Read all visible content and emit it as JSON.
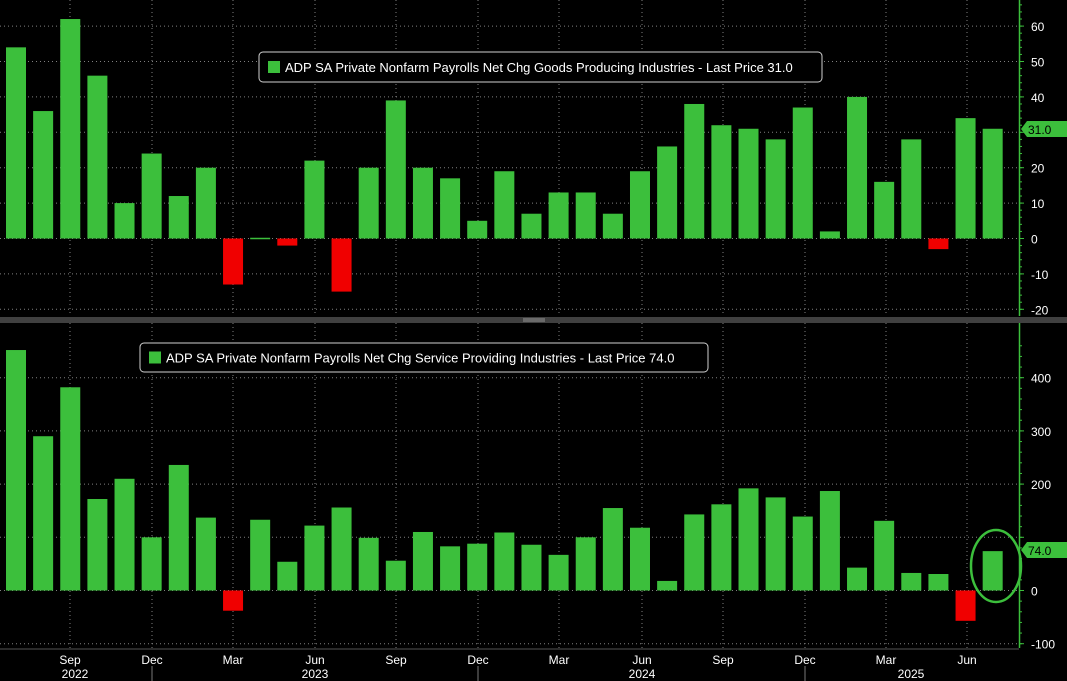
{
  "chart_data": [
    {
      "type": "bar",
      "title": "ADP SA Private Nonfarm Payrolls Net Chg Goods Producing Industries - Last Price 31.0",
      "legend_label": "ADP SA Private Nonfarm Payrolls Net Chg Goods Producing Industries - Last Price 31.0",
      "series_name": "Goods Producing Industries",
      "values": [
        54,
        36,
        62,
        46,
        10,
        24,
        12,
        20,
        -13,
        0,
        -2,
        22,
        -15,
        20,
        39,
        20,
        17,
        5,
        19,
        7,
        13,
        13,
        7,
        19,
        26,
        38,
        32,
        31,
        28,
        37,
        2,
        40,
        16,
        28,
        -3,
        34,
        31
      ],
      "ylim": [
        -22,
        66
      ],
      "yticks": [
        -20,
        -10,
        0,
        10,
        20,
        30,
        40,
        50,
        60
      ],
      "ytick_labels": [
        "-20",
        "-10",
        "0",
        "10",
        "20",
        "",
        "40",
        "50",
        "60"
      ],
      "last_value_label": "31.0",
      "positive_color": "#3cbf3c",
      "negative_color": "#f00000"
    },
    {
      "type": "bar",
      "title": "ADP SA Private Nonfarm Payrolls Net Chg Service Providing Industries - Last Price 74.0",
      "legend_label": "ADP SA Private Nonfarm Payrolls Net Chg Service Providing Industries - Last Price 74.0",
      "series_name": "Service Providing Industries",
      "values": [
        452,
        290,
        382,
        172,
        210,
        100,
        236,
        137,
        -38,
        133,
        54,
        122,
        156,
        99,
        56,
        110,
        83,
        88,
        109,
        86,
        67,
        100,
        155,
        118,
        18,
        143,
        162,
        192,
        175,
        139,
        187,
        43,
        131,
        33,
        31,
        -57,
        74
      ],
      "ylim": [
        -110,
        475
      ],
      "yticks": [
        -100,
        0,
        100,
        200,
        300,
        400
      ],
      "ytick_labels": [
        "-100",
        "0",
        "",
        "200",
        "300",
        "400"
      ],
      "last_value_label": "74.0",
      "positive_color": "#3cbf3c",
      "negative_color": "#f00000"
    }
  ],
  "x_axis": {
    "months": [
      "Sep",
      "Dec",
      "Mar",
      "Jun",
      "Sep",
      "Dec",
      "Mar",
      "Jun",
      "Sep",
      "Dec",
      "Mar",
      "Jun"
    ],
    "years": [
      "2022",
      "2023",
      "2024",
      "2025"
    ]
  },
  "colors": {
    "background": "#000000",
    "axis": "#3cbf3c",
    "grid": "#808080",
    "text": "#ffffff",
    "highlight_circle": "#3cbf3c"
  }
}
